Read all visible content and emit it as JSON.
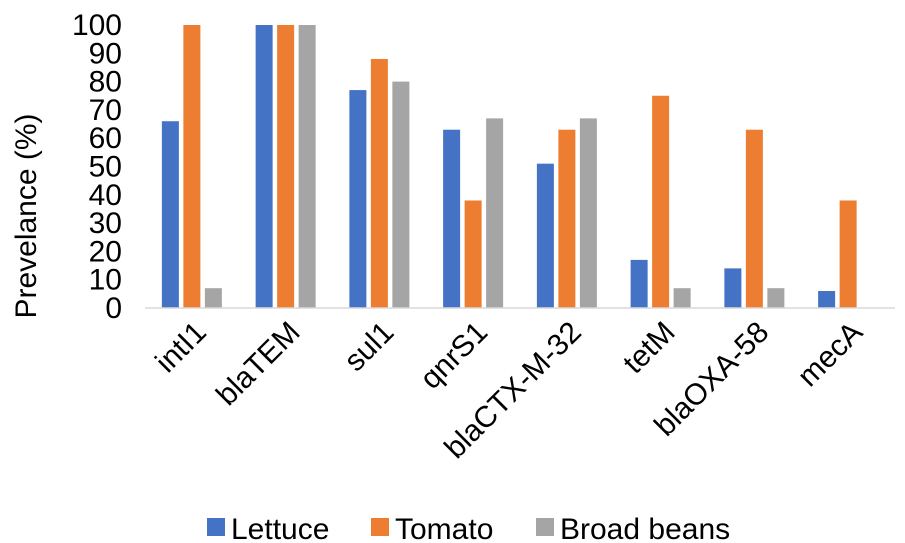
{
  "chart_data": {
    "type": "bar",
    "title": "",
    "xlabel": "",
    "ylabel": "Prevelance (%)",
    "ylim": [
      0,
      100
    ],
    "yticks": [
      0,
      10,
      20,
      30,
      40,
      50,
      60,
      70,
      80,
      90,
      100
    ],
    "grid": false,
    "legend_position": "bottom",
    "categories": [
      "intI1",
      "blaTEM",
      "sul1",
      "qnrS1",
      "blaCTX-M-32",
      "tetM",
      "blaOXA-58",
      "mecA"
    ],
    "series": [
      {
        "name": "Lettuce",
        "color": "#4472C4",
        "values": [
          66,
          100,
          77,
          63,
          51,
          17,
          14,
          6
        ]
      },
      {
        "name": "Tomato",
        "color": "#ED7D31",
        "values": [
          100,
          100,
          88,
          38,
          63,
          75,
          63,
          38
        ]
      },
      {
        "name": "Broad beans",
        "color": "#A5A5A5",
        "values": [
          7,
          100,
          80,
          67,
          67,
          7,
          7,
          0
        ]
      }
    ]
  }
}
